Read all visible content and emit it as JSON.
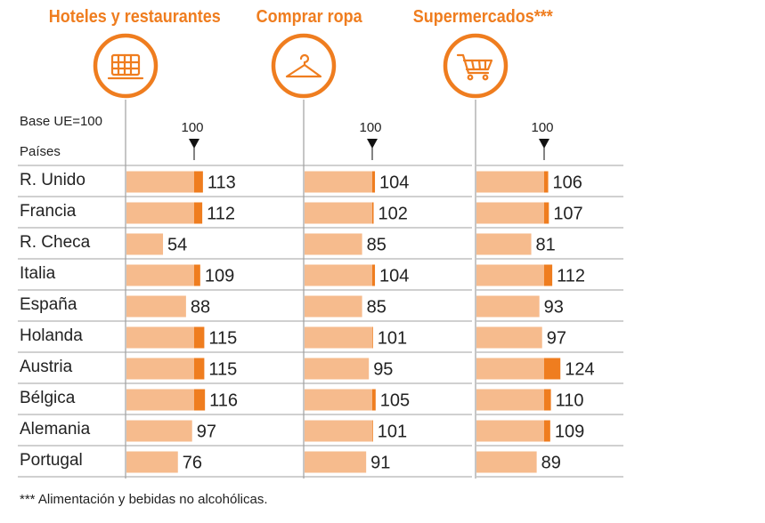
{
  "colors": {
    "accent": "#ef7d1f",
    "bar": "#f6bb8d",
    "grid": "#a0a0a0"
  },
  "header": {
    "base_label": "Base UE=100",
    "countries_label": "Países"
  },
  "footnote": "*** Alimentación y bebidas no alcohólicas.",
  "categories": [
    {
      "title": "Hoteles y restaurantes",
      "icon": "colosseum-icon",
      "marker": "100"
    },
    {
      "title": "Comprar ropa",
      "icon": "hanger-icon",
      "marker": "100"
    },
    {
      "title": "Supermercados***",
      "icon": "shopping-cart-icon",
      "marker": "100"
    }
  ],
  "chart_data": {
    "type": "bar",
    "orientation": "horizontal",
    "reference_value": 100,
    "categories": [
      "R. Unido",
      "Francia",
      "R. Checa",
      "Italia",
      "España",
      "Holanda",
      "Austria",
      "Bélgica",
      "Alemania",
      "Portugal"
    ],
    "series": [
      {
        "name": "Hoteles y restaurantes",
        "values": [
          113,
          112,
          54,
          109,
          88,
          115,
          115,
          116,
          97,
          76
        ]
      },
      {
        "name": "Comprar ropa",
        "values": [
          104,
          102,
          85,
          104,
          85,
          101,
          95,
          105,
          101,
          91
        ]
      },
      {
        "name": "Supermercados***",
        "values": [
          106,
          107,
          81,
          112,
          93,
          97,
          124,
          110,
          109,
          89
        ]
      }
    ]
  }
}
